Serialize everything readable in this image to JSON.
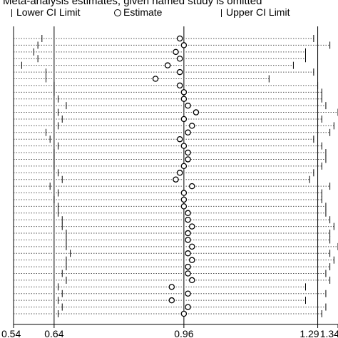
{
  "title": "Meta-analysis estimates, given named study is omitted",
  "legend": {
    "lower": "Lower CI Limit",
    "estimate": "Estimate",
    "upper": "Upper CI Limit"
  },
  "chart_data": {
    "type": "scatter",
    "title": "Meta-analysis estimates, given named study is omitted",
    "xlim": [
      0.54,
      1.34
    ],
    "x_ticks": [
      {
        "value": 0.54,
        "label": "0.54"
      },
      {
        "value": 0.64,
        "label": "0.64"
      },
      {
        "value": 0.96,
        "label": "0.96"
      },
      {
        "value": 1.29,
        "label": "1.29"
      },
      {
        "value": 1.34,
        "label": "1.34"
      }
    ],
    "reference_lines": [
      0.64,
      0.96,
      1.29
    ],
    "series": [
      {
        "name": "Lower CI Limit",
        "values": [
          0.61,
          0.6,
          0.59,
          0.6,
          0.56,
          0.62,
          0.62,
          0.64,
          0.64,
          0.65,
          0.67,
          0.65,
          0.66,
          0.65,
          0.62,
          0.63,
          0.65,
          0.64,
          0.64,
          0.64,
          0.65,
          0.66,
          0.63,
          0.65,
          0.64,
          0.65,
          0.65,
          0.66,
          0.66,
          0.67,
          0.67,
          0.67,
          0.68,
          0.67,
          0.67,
          0.66,
          0.67,
          0.65,
          0.66,
          0.65,
          0.66,
          0.65
        ]
      },
      {
        "name": "Estimate",
        "values": [
          0.95,
          0.96,
          0.94,
          0.95,
          0.92,
          0.95,
          0.89,
          0.95,
          0.96,
          0.96,
          0.97,
          0.99,
          0.96,
          0.98,
          0.97,
          0.95,
          0.96,
          0.97,
          0.97,
          0.96,
          0.95,
          0.94,
          0.98,
          0.96,
          0.96,
          0.96,
          0.97,
          0.97,
          0.98,
          0.97,
          0.97,
          0.98,
          0.97,
          0.98,
          0.97,
          0.97,
          0.98,
          0.93,
          0.97,
          0.93,
          0.97,
          0.96
        ]
      },
      {
        "name": "Upper CI Limit",
        "values": [
          1.28,
          1.32,
          1.26,
          1.26,
          1.23,
          1.28,
          1.17,
          1.29,
          1.3,
          1.3,
          1.31,
          1.34,
          1.3,
          1.33,
          1.32,
          1.28,
          1.3,
          1.31,
          1.31,
          1.3,
          1.28,
          1.27,
          1.32,
          1.3,
          1.3,
          1.31,
          1.31,
          1.32,
          1.33,
          1.32,
          1.32,
          1.34,
          1.32,
          1.33,
          1.32,
          1.31,
          1.32,
          1.26,
          1.31,
          1.26,
          1.31,
          1.3
        ]
      }
    ]
  }
}
